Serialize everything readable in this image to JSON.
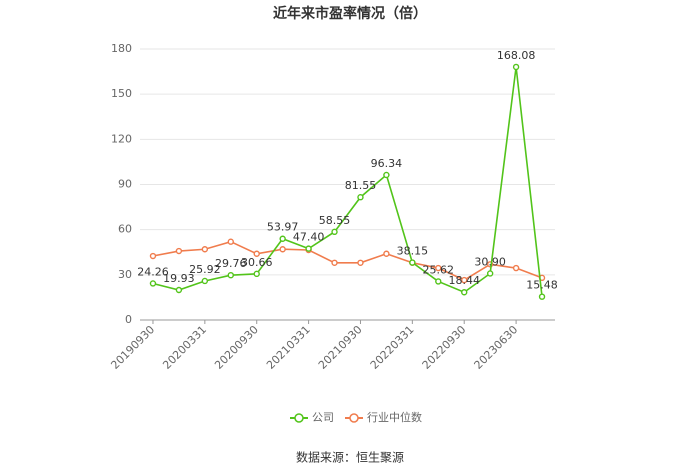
{
  "chart_data": {
    "type": "line",
    "title": "近年来市盈率情况（倍）",
    "source": "数据来源：恒生聚源",
    "categories": [
      "20190930",
      null,
      "20200331",
      null,
      "20200930",
      null,
      "20210331",
      null,
      "20210930",
      null,
      "20220331",
      null,
      "20220930",
      null,
      "20230630",
      null
    ],
    "series": [
      {
        "name": "公司",
        "color": "#52c41a",
        "values": [
          24.26,
          19.93,
          25.92,
          29.76,
          30.66,
          53.97,
          47.4,
          58.55,
          81.55,
          96.34,
          38.15,
          25.62,
          18.44,
          30.9,
          168.08,
          15.48
        ],
        "value_labels": [
          "24.26",
          "19.93",
          "25.92",
          "29.76",
          "30.66",
          "53.97",
          "47.40",
          "58.55",
          "81.55",
          "96.34",
          "38.15",
          "25.62",
          "18.44",
          "30.90",
          "168.08",
          "15.48"
        ]
      },
      {
        "name": "行业中位数",
        "color": "#f07c4d",
        "values": [
          42.5,
          45.8,
          47,
          52,
          44,
          47,
          46.5,
          38,
          38,
          44,
          38,
          34.5,
          26.5,
          37,
          34.5,
          28
        ]
      }
    ],
    "ylim": [
      0,
      180
    ],
    "yticks": [
      0,
      30,
      60,
      90,
      120,
      150,
      180
    ],
    "grid": true,
    "legend": "bottom"
  }
}
